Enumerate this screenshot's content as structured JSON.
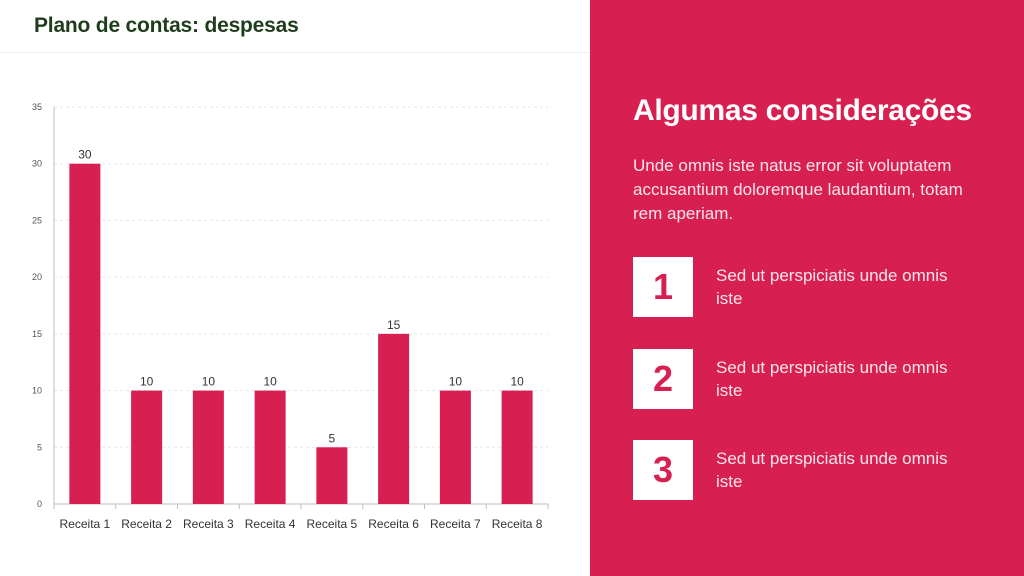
{
  "slide": {
    "title": "Plano de contas: despesas"
  },
  "panel": {
    "heading": "Algumas considerações",
    "body": "Unde omnis iste natus error sit voluptatem accusantium doloremque laudantium, totam rem aperiam.",
    "points": [
      {
        "number": "1",
        "text": "Sed ut perspiciatis unde omnis iste"
      },
      {
        "number": "2",
        "text": "Sed ut perspiciatis unde omnis iste"
      },
      {
        "number": "3",
        "text": "Sed ut perspiciatis unde omnis iste"
      }
    ]
  },
  "colors": {
    "accent": "#d81f51",
    "title": "#1f3d1c",
    "grid": "#e6e6e6",
    "axis_text": "#555555"
  },
  "chart_data": {
    "type": "bar",
    "title": "",
    "xlabel": "",
    "ylabel": "",
    "categories": [
      "Receita 1",
      "Receita 2",
      "Receita 3",
      "Receita 4",
      "Receita 5",
      "Receita 6",
      "Receita 7",
      "Receita 8"
    ],
    "values": [
      30,
      10,
      10,
      10,
      5,
      15,
      10,
      10
    ],
    "ylim": [
      0,
      35
    ],
    "yticks": [
      0,
      5,
      10,
      15,
      20,
      25,
      30,
      35
    ],
    "data_labels": true,
    "grid": "horizontal dashed",
    "legend": "none"
  }
}
